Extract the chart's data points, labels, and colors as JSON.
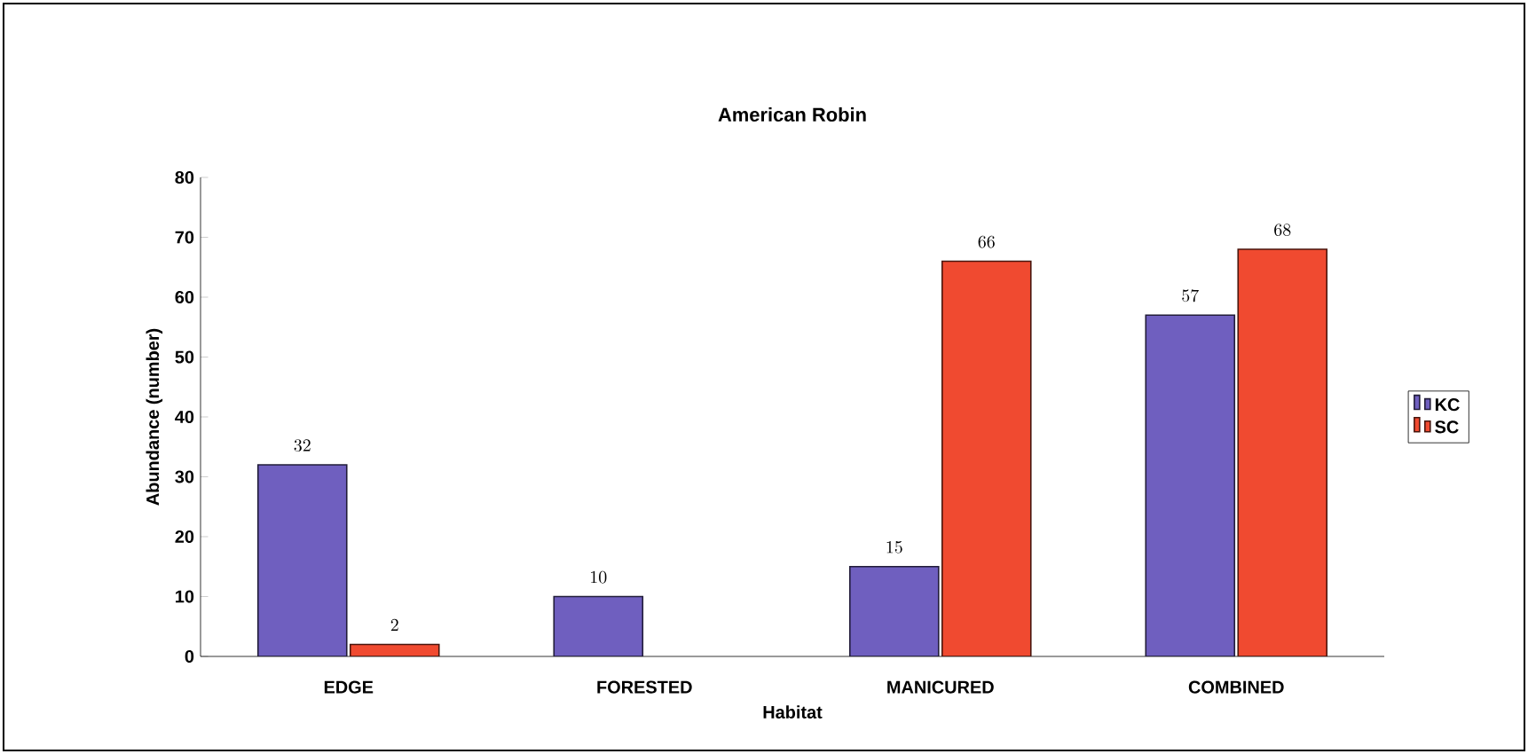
{
  "chart_data": {
    "type": "bar",
    "title": "American Robin",
    "xlabel": "Habitat",
    "ylabel": "Abundance (number)",
    "categories": [
      "EDGE",
      "FORESTED",
      "MANICURED",
      "COMBINED"
    ],
    "series": [
      {
        "name": "KC",
        "color": "#6f5fbf",
        "values": [
          32,
          10,
          15,
          57
        ]
      },
      {
        "name": "SC",
        "color": "#f04a30",
        "values": [
          2,
          null,
          66,
          68
        ]
      }
    ],
    "ylim": [
      0,
      80
    ],
    "yticks": [
      0,
      10,
      20,
      30,
      40,
      50,
      60,
      70,
      80
    ],
    "data_labels": true,
    "legend": "right",
    "grid": false
  }
}
